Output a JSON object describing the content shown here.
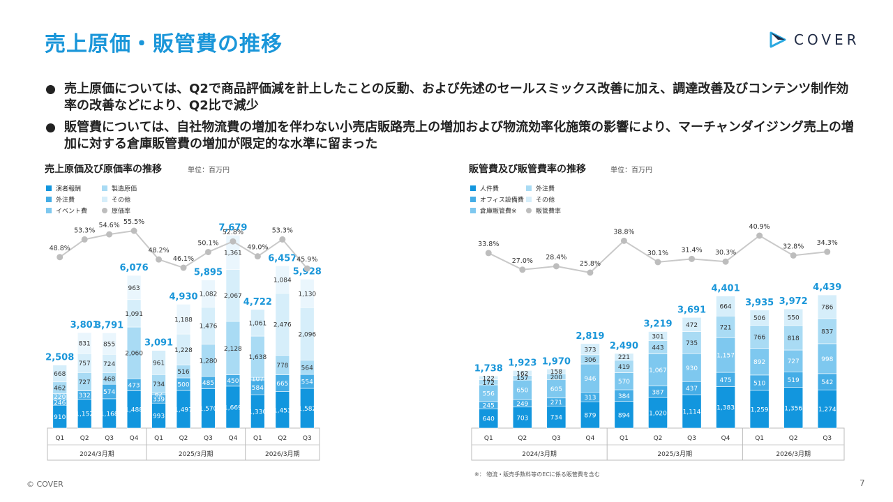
{
  "header": {
    "title": "売上原価・販管費の推移",
    "logo_text": "COVER"
  },
  "bullets": [
    "売上原価については、Q2で商品評価減を計上したことの反動、および先述のセールスミックス改善に加え、調達改善及びコンテンツ制作効率の改善などにより、Q2比で減少",
    "販管費については、自社物流費の増加を伴わない小売店販路売上の増加および物流効率化施策の影響により、マーチャンダイジング売上の増加に対する倉庫販管費の増加が限定的な水準に留まった"
  ],
  "footer": {
    "copyright": "© COVER",
    "page": "7",
    "footnote": "※： 物流・販売手数料等のECに係る販管費を含む"
  },
  "colors": {
    "accent": "#1a96d9",
    "s1": "#1296de",
    "s2": "#45ade6",
    "s3": "#7ec8ef",
    "s4": "#a9dbf4",
    "s5": "#d6eefa",
    "rate": "#bdbdbd"
  },
  "chart_data": [
    {
      "type": "bar",
      "title": "売上原価及び原価率の推移",
      "unit": "単位：百万円",
      "categories": [
        "Q1",
        "Q2",
        "Q3",
        "Q4",
        "Q1",
        "Q2",
        "Q3",
        "Q4",
        "Q1",
        "Q2",
        "Q3"
      ],
      "groups": [
        {
          "label": "2024/3月期",
          "count": 4
        },
        {
          "label": "2025/3月期",
          "count": 4
        },
        {
          "label": "2026/3月期",
          "count": 3
        }
      ],
      "series": [
        {
          "name": "演者報酬",
          "values": [
            910,
            1152,
            1168,
            1488,
            993,
            1497,
            1570,
            1669,
            1330,
            1453,
            1582
          ]
        },
        {
          "name": "外注費",
          "values": [
            246,
            332,
            574,
            473,
            339,
            500,
            485,
            450,
            584,
            665,
            554
          ]
        },
        {
          "name": "イベント費",
          "values": [
            220,
            0,
            0,
            0,
            62,
            0,
            0,
            0,
            107,
            0,
            0
          ]
        },
        {
          "name": "製造原価",
          "values": [
            462,
            727,
            468,
            2060,
            734,
            516,
            1280,
            2128,
            1638,
            778,
            564
          ]
        },
        {
          "name": "その他",
          "values": [
            668,
            757,
            724,
            1091,
            961,
            1228,
            1476,
            2067,
            1061,
            2476,
            2096
          ]
        }
      ],
      "top_extra": [
        0,
        831,
        855,
        963,
        0,
        1188,
        1082,
        1361,
        0,
        1084,
        1130
      ],
      "totals": [
        2508,
        3801,
        3791,
        6076,
        3091,
        4930,
        5895,
        7679,
        4722,
        6457,
        5928
      ],
      "rate": {
        "name": "原価率",
        "values": [
          48.8,
          53.3,
          54.6,
          55.5,
          48.2,
          46.1,
          50.1,
          52.8,
          49.0,
          53.3,
          45.9
        ]
      },
      "legend": [
        "演者報酬",
        "製造原価",
        "外注費",
        "その他",
        "イベント費",
        "原価率"
      ]
    },
    {
      "type": "bar",
      "title": "販管費及び販管費率の推移",
      "unit": "単位：百万円",
      "categories": [
        "Q1",
        "Q2",
        "Q3",
        "Q4",
        "Q1",
        "Q2",
        "Q3",
        "Q4",
        "Q1",
        "Q2",
        "Q3"
      ],
      "groups": [
        {
          "label": "2024/3月期",
          "count": 4
        },
        {
          "label": "2025/3月期",
          "count": 4
        },
        {
          "label": "2026/3月期",
          "count": 3
        }
      ],
      "series": [
        {
          "name": "人件費",
          "values": [
            640,
            703,
            734,
            879,
            894,
            1020,
            1114,
            1383,
            1259,
            1356,
            1274
          ]
        },
        {
          "name": "オフィス設備費",
          "values": [
            245,
            249,
            271,
            313,
            384,
            387,
            437,
            475,
            510,
            519,
            542
          ]
        },
        {
          "name": "倉庫販管費※",
          "values": [
            556,
            650,
            605,
            946,
            570,
            1067,
            930,
            1157,
            892,
            727,
            998
          ]
        },
        {
          "name": "外注費",
          "values": [
            172,
            157,
            200,
            306,
            419,
            443,
            735,
            721,
            766,
            818,
            837
          ]
        },
        {
          "name": "その他",
          "values": [
            122,
            162,
            158,
            373,
            221,
            301,
            472,
            664,
            506,
            550,
            786
          ]
        }
      ],
      "totals": [
        1738,
        1923,
        1970,
        2819,
        2490,
        3219,
        3691,
        4401,
        3935,
        3972,
        4439
      ],
      "rate": {
        "name": "販管費率",
        "values": [
          33.8,
          27.0,
          28.4,
          25.8,
          38.8,
          30.1,
          31.4,
          30.3,
          40.9,
          32.8,
          34.3
        ]
      },
      "legend": [
        "人件費",
        "外注費",
        "オフィス設備費",
        "その他",
        "倉庫販管費※",
        "販管費率"
      ]
    }
  ]
}
